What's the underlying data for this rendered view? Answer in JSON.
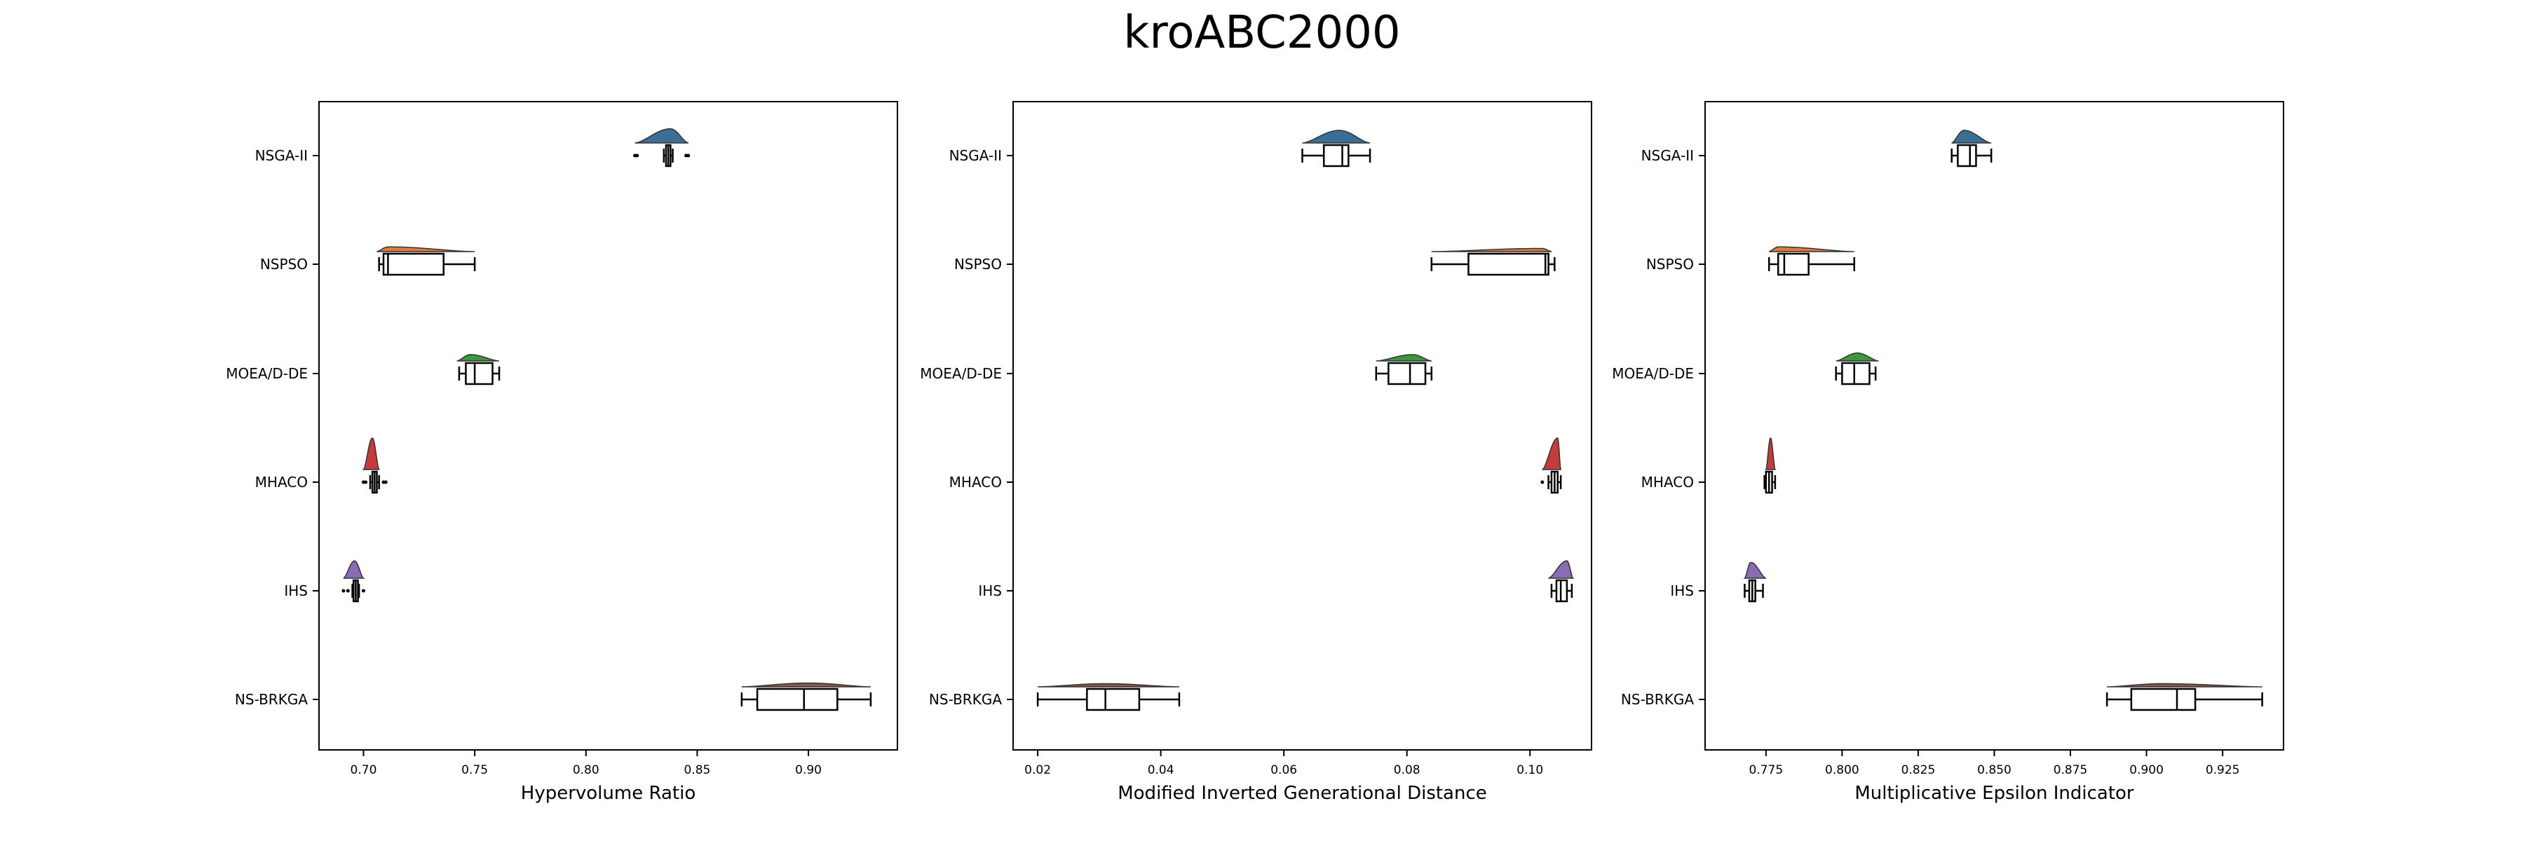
{
  "title": "kroABC2000",
  "chart_data": [
    {
      "type": "raincloud-boxplot",
      "xlabel": "Hypervolume Ratio",
      "xlim": [
        0.68,
        0.94
      ],
      "xticks": [
        0.7,
        0.75,
        0.8,
        0.85,
        0.9
      ],
      "xtick_labels": [
        "0.70",
        "0.75",
        "0.80",
        "0.85",
        "0.90"
      ],
      "categories": [
        "NSGA-II",
        "NSPSO",
        "MOEA/D-DE",
        "MHACO",
        "IHS",
        "NS-BRKGA"
      ],
      "boxes": [
        {
          "whislo": 0.835,
          "q1": 0.836,
          "med": 0.837,
          "q3": 0.838,
          "whishi": 0.839,
          "fliers": [
            0.822,
            0.823,
            0.845,
            0.846
          ]
        },
        {
          "whislo": 0.707,
          "q1": 0.709,
          "med": 0.711,
          "q3": 0.736,
          "whishi": 0.75,
          "fliers": []
        },
        {
          "whislo": 0.743,
          "q1": 0.746,
          "med": 0.75,
          "q3": 0.758,
          "whishi": 0.761,
          "fliers": []
        },
        {
          "whislo": 0.703,
          "q1": 0.704,
          "med": 0.705,
          "q3": 0.706,
          "whishi": 0.707,
          "fliers": [
            0.7,
            0.701,
            0.709,
            0.71
          ]
        },
        {
          "whislo": 0.695,
          "q1": 0.6955,
          "med": 0.6965,
          "q3": 0.6975,
          "whishi": 0.698,
          "fliers": [
            0.691,
            0.693,
            0.7
          ]
        },
        {
          "whislo": 0.87,
          "q1": 0.877,
          "med": 0.898,
          "q3": 0.913,
          "whishi": 0.928,
          "fliers": []
        }
      ],
      "clouds": [
        {
          "min": 0.822,
          "max": 0.846,
          "peak": 0.838,
          "height": 0.45
        },
        {
          "min": 0.706,
          "max": 0.75,
          "peak": 0.711,
          "height": 0.15
        },
        {
          "min": 0.742,
          "max": 0.761,
          "peak": 0.748,
          "height": 0.2
        },
        {
          "min": 0.7,
          "max": 0.707,
          "peak": 0.704,
          "height": 1.0
        },
        {
          "min": 0.691,
          "max": 0.7,
          "peak": 0.696,
          "height": 0.55
        },
        {
          "min": 0.87,
          "max": 0.928,
          "peak": 0.9,
          "height": 0.12
        }
      ]
    },
    {
      "type": "raincloud-boxplot",
      "xlabel": "Modified Inverted Generational Distance",
      "xlim": [
        0.016,
        0.11
      ],
      "xticks": [
        0.02,
        0.04,
        0.06,
        0.08,
        0.1
      ],
      "xtick_labels": [
        "0.02",
        "0.04",
        "0.06",
        "0.08",
        "0.10"
      ],
      "categories": [
        "NSGA-II",
        "NSPSO",
        "MOEA/D-DE",
        "MHACO",
        "IHS",
        "NS-BRKGA"
      ],
      "boxes": [
        {
          "whislo": 0.063,
          "q1": 0.0665,
          "med": 0.0695,
          "q3": 0.0705,
          "whishi": 0.074,
          "fliers": []
        },
        {
          "whislo": 0.084,
          "q1": 0.09,
          "med": 0.1025,
          "q3": 0.103,
          "whishi": 0.104,
          "fliers": []
        },
        {
          "whislo": 0.075,
          "q1": 0.077,
          "med": 0.0805,
          "q3": 0.083,
          "whishi": 0.084,
          "fliers": []
        },
        {
          "whislo": 0.103,
          "q1": 0.1035,
          "med": 0.104,
          "q3": 0.1045,
          "whishi": 0.105,
          "fliers": [
            0.102
          ]
        },
        {
          "whislo": 0.1035,
          "q1": 0.1043,
          "med": 0.105,
          "q3": 0.106,
          "whishi": 0.1068,
          "fliers": []
        },
        {
          "whislo": 0.02,
          "q1": 0.028,
          "med": 0.031,
          "q3": 0.0365,
          "whishi": 0.043,
          "fliers": []
        }
      ],
      "clouds": [
        {
          "min": 0.063,
          "max": 0.074,
          "peak": 0.069,
          "height": 0.4
        },
        {
          "min": 0.084,
          "max": 0.1035,
          "peak": 0.102,
          "height": 0.1
        },
        {
          "min": 0.075,
          "max": 0.084,
          "peak": 0.081,
          "height": 0.2
        },
        {
          "min": 0.102,
          "max": 0.105,
          "peak": 0.1045,
          "height": 1.0
        },
        {
          "min": 0.103,
          "max": 0.107,
          "peak": 0.106,
          "height": 0.55
        },
        {
          "min": 0.02,
          "max": 0.043,
          "peak": 0.031,
          "height": 0.1
        }
      ]
    },
    {
      "type": "raincloud-boxplot",
      "xlabel": "Multiplicative Epsilon Indicator",
      "xlim": [
        0.755,
        0.945
      ],
      "xticks": [
        0.775,
        0.8,
        0.825,
        0.85,
        0.875,
        0.9,
        0.925
      ],
      "xtick_labels": [
        "0.775",
        "0.800",
        "0.825",
        "0.850",
        "0.875",
        "0.900",
        "0.925"
      ],
      "categories": [
        "NSGA-II",
        "NSPSO",
        "MOEA/D-DE",
        "MHACO",
        "IHS",
        "NS-BRKGA"
      ],
      "boxes": [
        {
          "whislo": 0.836,
          "q1": 0.838,
          "med": 0.842,
          "q3": 0.844,
          "whishi": 0.849,
          "fliers": []
        },
        {
          "whislo": 0.776,
          "q1": 0.779,
          "med": 0.781,
          "q3": 0.789,
          "whishi": 0.804,
          "fliers": []
        },
        {
          "whislo": 0.798,
          "q1": 0.8,
          "med": 0.804,
          "q3": 0.809,
          "whishi": 0.811,
          "fliers": []
        },
        {
          "whislo": 0.7745,
          "q1": 0.775,
          "med": 0.776,
          "q3": 0.777,
          "whishi": 0.778,
          "fliers": []
        },
        {
          "whislo": 0.768,
          "q1": 0.7695,
          "med": 0.7705,
          "q3": 0.7715,
          "whishi": 0.774,
          "fliers": []
        },
        {
          "whislo": 0.887,
          "q1": 0.895,
          "med": 0.91,
          "q3": 0.916,
          "whishi": 0.938,
          "fliers": []
        }
      ],
      "clouds": [
        {
          "min": 0.836,
          "max": 0.849,
          "peak": 0.84,
          "height": 0.4
        },
        {
          "min": 0.776,
          "max": 0.804,
          "peak": 0.779,
          "height": 0.15
        },
        {
          "min": 0.798,
          "max": 0.812,
          "peak": 0.805,
          "height": 0.25
        },
        {
          "min": 0.775,
          "max": 0.778,
          "peak": 0.7765,
          "height": 1.0
        },
        {
          "min": 0.768,
          "max": 0.775,
          "peak": 0.77,
          "height": 0.5
        },
        {
          "min": 0.887,
          "max": 0.938,
          "peak": 0.905,
          "height": 0.1
        }
      ]
    }
  ],
  "colors": [
    "#3a6e94",
    "#e07b39",
    "#3a9a3a",
    "#c43b3b",
    "#8b6bb5",
    "#8c564b"
  ]
}
